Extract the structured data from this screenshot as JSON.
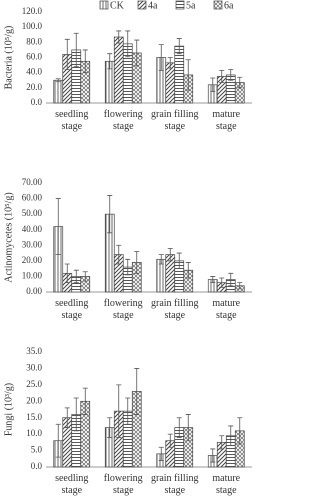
{
  "chart_data": [
    {
      "type": "bar",
      "ylabel": "Bacteria (10⁵/g)",
      "ylim": [
        0,
        120
      ],
      "yticks": [
        {
          "value": 0,
          "label": "0.0"
        },
        {
          "value": 20,
          "label": "20.0"
        },
        {
          "value": 40,
          "label": "40.0"
        },
        {
          "value": 60,
          "label": "60.0"
        },
        {
          "value": 80,
          "label": "80.0"
        },
        {
          "value": 100,
          "label": "100.0"
        },
        {
          "value": 120,
          "label": "120.0"
        }
      ],
      "grid": false,
      "legend": "top",
      "categories": [
        "seedling stage",
        "flowering stage",
        "grain filling stage",
        "mature stage"
      ],
      "series": [
        {
          "name": "CK",
          "color": "#444444",
          "hatch": "vertical",
          "values": [
            30,
            55,
            60,
            24
          ],
          "errors": [
            2,
            10,
            17,
            9
          ]
        },
        {
          "name": "4a",
          "color": "#444444",
          "hatch": "diagonal",
          "values": [
            64,
            87,
            53,
            35
          ],
          "errors": [
            20,
            8,
            7,
            8
          ]
        },
        {
          "name": "5a",
          "color": "#444444",
          "hatch": "dense",
          "values": [
            70,
            78,
            75,
            37
          ],
          "errors": [
            22,
            17,
            10,
            7
          ]
        },
        {
          "name": "6a",
          "color": "#444444",
          "hatch": "cross",
          "values": [
            55,
            66,
            37,
            27
          ],
          "errors": [
            15,
            17,
            20,
            7
          ]
        }
      ]
    },
    {
      "type": "bar",
      "ylabel": "Actinomycetes (10⁵/g)",
      "ylim": [
        0,
        70
      ],
      "yticks": [
        {
          "value": 0,
          "label": "0.00"
        },
        {
          "value": 10,
          "label": "10.00"
        },
        {
          "value": 20,
          "label": "20.00"
        },
        {
          "value": 30,
          "label": "30.00"
        },
        {
          "value": 40,
          "label": "40.00"
        },
        {
          "value": 50,
          "label": "50.00"
        },
        {
          "value": 60,
          "label": "60.00"
        },
        {
          "value": 70,
          "label": "70.00"
        }
      ],
      "grid": false,
      "categories": [
        "seedling stage",
        "flowering stage",
        "grain filling stage",
        "mature stage"
      ],
      "series": [
        {
          "color": "#444444",
          "hatch": "vertical",
          "values": [
            42,
            50,
            21,
            8
          ],
          "errors": [
            18,
            12,
            3,
            2
          ]
        },
        {
          "color": "#444444",
          "hatch": "diagonal",
          "values": [
            12,
            24,
            24,
            6
          ],
          "errors": [
            6,
            6,
            4,
            3
          ]
        },
        {
          "color": "#444444",
          "hatch": "dense",
          "values": [
            10,
            16,
            20,
            8
          ],
          "errors": [
            4,
            5,
            5,
            4
          ]
        },
        {
          "color": "#444444",
          "hatch": "cross",
          "values": [
            10,
            19,
            14,
            4
          ],
          "errors": [
            3,
            7,
            5,
            2
          ]
        }
      ]
    },
    {
      "type": "bar",
      "ylabel": "Fungi (10³/g)",
      "ylim": [
        0,
        35
      ],
      "yticks": [
        {
          "value": 0,
          "label": "0.0"
        },
        {
          "value": 5,
          "label": "5.0"
        },
        {
          "value": 10,
          "label": "10.0"
        },
        {
          "value": 15,
          "label": "15.0"
        },
        {
          "value": 20,
          "label": "20.0"
        },
        {
          "value": 25,
          "label": "25.0"
        },
        {
          "value": 30,
          "label": "30.0"
        },
        {
          "value": 35,
          "label": "35.0"
        }
      ],
      "grid": false,
      "categories": [
        "seedling stage",
        "flowering stage",
        "grain filling stage",
        "mature stage"
      ],
      "series": [
        {
          "color": "#444444",
          "hatch": "vertical",
          "values": [
            8,
            12,
            4,
            3.5
          ],
          "errors": [
            5,
            3,
            2,
            2
          ]
        },
        {
          "color": "#444444",
          "hatch": "diagonal",
          "values": [
            15,
            17,
            8,
            7.5
          ],
          "errors": [
            3,
            8,
            2,
            2
          ]
        },
        {
          "color": "#444444",
          "hatch": "dense",
          "values": [
            16,
            17,
            12,
            9.5
          ],
          "errors": [
            5,
            4,
            3,
            3
          ]
        },
        {
          "color": "#444444",
          "hatch": "cross",
          "values": [
            20,
            23,
            12,
            11
          ],
          "errors": [
            4,
            7,
            4,
            4
          ]
        }
      ]
    }
  ]
}
